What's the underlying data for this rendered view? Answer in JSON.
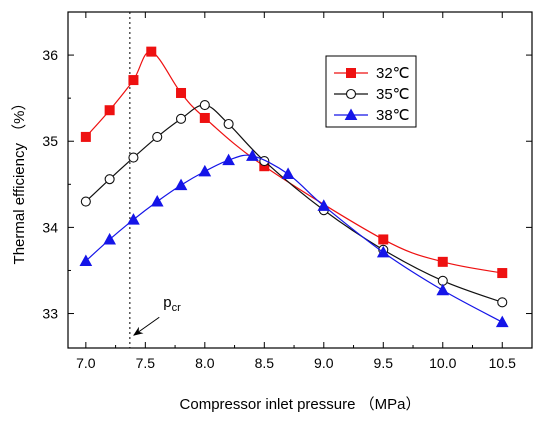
{
  "chart_data": {
    "type": "line",
    "title": "",
    "xlabel": "Compressor inlet pressure （MPa）",
    "ylabel": "Thermal efficiency （%）",
    "xlim": [
      6.85,
      10.75
    ],
    "ylim": [
      32.6,
      36.5
    ],
    "x_ticks": [
      7.0,
      7.5,
      8.0,
      8.5,
      9.0,
      9.5,
      10.0,
      10.5
    ],
    "x_tick_labels": [
      "7.0",
      "7.5",
      "8.0",
      "8.5",
      "9.0",
      "9.5",
      "10.0",
      "10.5"
    ],
    "y_ticks": [
      33,
      34,
      35,
      36
    ],
    "y_tick_labels": [
      "33",
      "34",
      "35",
      "36"
    ],
    "grid": false,
    "legend_position": "top-right",
    "series": [
      {
        "name": "32℃",
        "color": "#ee1111",
        "marker": "square",
        "x": [
          7.0,
          7.2,
          7.4,
          7.55,
          7.8,
          8.0,
          8.5,
          9.5,
          10.0,
          10.5
        ],
        "y": [
          35.05,
          35.36,
          35.71,
          36.04,
          35.56,
          35.27,
          34.71,
          33.86,
          33.6,
          33.47
        ]
      },
      {
        "name": "35℃",
        "color": "#111111",
        "marker": "circle",
        "x": [
          7.0,
          7.2,
          7.4,
          7.6,
          7.8,
          8.0,
          8.2,
          8.5,
          9.0,
          9.5,
          10.0,
          10.5
        ],
        "y": [
          34.3,
          34.56,
          34.81,
          35.05,
          35.26,
          35.42,
          35.2,
          34.77,
          34.2,
          33.74,
          33.38,
          33.13
        ]
      },
      {
        "name": "38℃",
        "color": "#1515e8",
        "marker": "triangle",
        "x": [
          7.0,
          7.2,
          7.4,
          7.6,
          7.8,
          8.0,
          8.2,
          8.4,
          8.7,
          9.0,
          9.5,
          10.0,
          10.5
        ],
        "y": [
          33.61,
          33.86,
          34.09,
          34.3,
          34.49,
          34.65,
          34.78,
          34.83,
          34.62,
          34.25,
          33.71,
          33.27,
          32.9
        ]
      }
    ],
    "annotations": [
      {
        "type": "vline",
        "x": 7.37,
        "style": "dotted"
      },
      {
        "type": "arrow-label",
        "label": "p",
        "subscript": "cr",
        "x": 7.55,
        "y": 33.05
      }
    ]
  }
}
